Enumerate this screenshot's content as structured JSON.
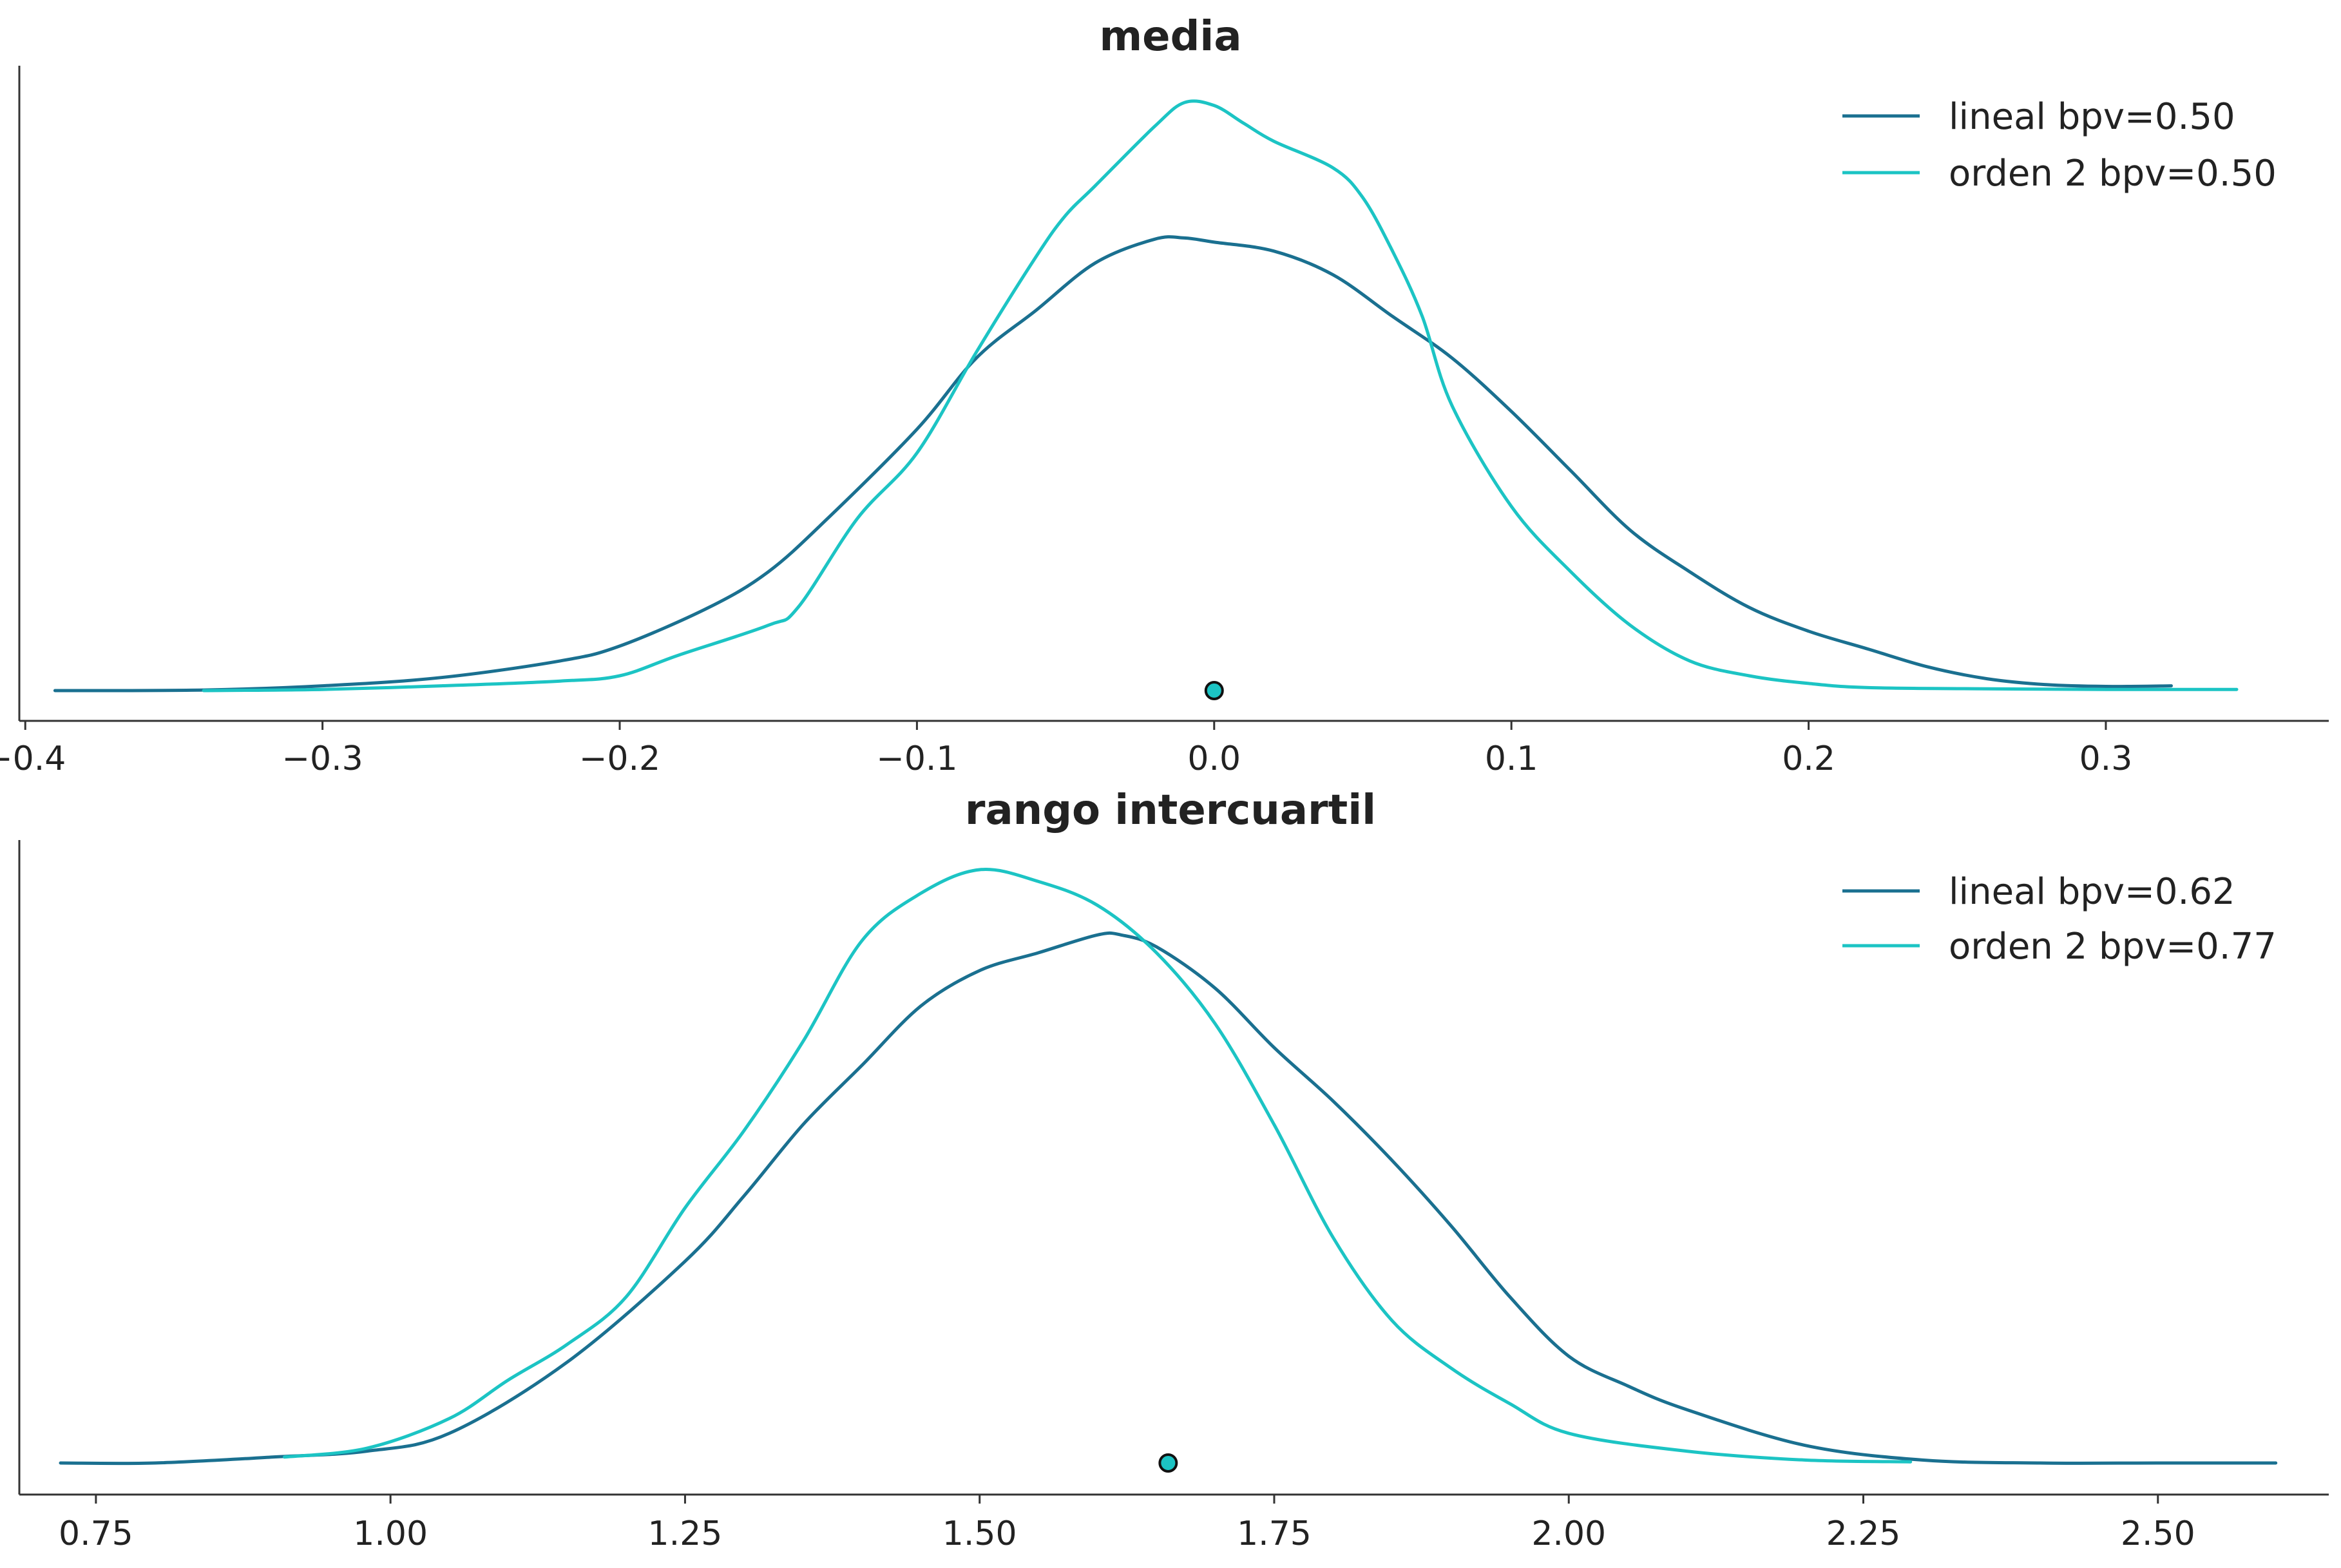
{
  "colors": {
    "lineal": "#1a7090",
    "orden2": "#1cc4c4",
    "axis": "#333333",
    "text": "#222222"
  },
  "chart_data": [
    {
      "type": "line",
      "title": "media",
      "xlim": [
        -0.402,
        0.375
      ],
      "ylim": [
        0,
        1
      ],
      "xticks": [
        -0.4,
        -0.3,
        -0.2,
        -0.1,
        0.0,
        0.1,
        0.2,
        0.3
      ],
      "xtick_labels": [
        "−0.4",
        "−0.3",
        "−0.2",
        "−0.1",
        "0.0",
        "0.1",
        "0.2",
        "0.3"
      ],
      "legend_position": "top-right",
      "marker": {
        "x": 0.0,
        "y": 0.0
      },
      "series": [
        {
          "name": "lineal bpv=0.50",
          "color": "#1a7090",
          "x": [
            -0.39,
            -0.34,
            -0.3,
            -0.26,
            -0.22,
            -0.2,
            -0.17,
            -0.15,
            -0.13,
            -0.1,
            -0.08,
            -0.06,
            -0.04,
            -0.02,
            -0.01,
            0.0,
            0.02,
            0.04,
            0.06,
            0.08,
            0.1,
            0.12,
            0.14,
            0.16,
            0.18,
            0.2,
            0.22,
            0.24,
            0.26,
            0.28,
            0.3,
            0.322
          ],
          "y": [
            0.0,
            0.001,
            0.008,
            0.022,
            0.05,
            0.075,
            0.14,
            0.2,
            0.29,
            0.44,
            0.56,
            0.64,
            0.72,
            0.76,
            0.762,
            0.755,
            0.74,
            0.7,
            0.63,
            0.56,
            0.47,
            0.37,
            0.27,
            0.2,
            0.14,
            0.1,
            0.07,
            0.04,
            0.02,
            0.01,
            0.007,
            0.008
          ]
        },
        {
          "name": "orden 2 bpv=0.50",
          "color": "#1cc4c4",
          "x": [
            -0.34,
            -0.3,
            -0.26,
            -0.22,
            -0.2,
            -0.18,
            -0.15,
            -0.14,
            -0.12,
            -0.1,
            -0.08,
            -0.06,
            -0.05,
            -0.04,
            -0.02,
            -0.01,
            0.0,
            0.01,
            0.02,
            0.04,
            0.05,
            0.06,
            0.07,
            0.08,
            0.1,
            0.12,
            0.14,
            0.16,
            0.18,
            0.2,
            0.22,
            0.26,
            0.3,
            0.344
          ],
          "y": [
            0.0,
            0.002,
            0.008,
            0.016,
            0.025,
            0.06,
            0.11,
            0.14,
            0.29,
            0.4,
            0.57,
            0.73,
            0.8,
            0.85,
            0.95,
            0.99,
            0.985,
            0.955,
            0.925,
            0.88,
            0.83,
            0.74,
            0.63,
            0.48,
            0.31,
            0.2,
            0.11,
            0.05,
            0.025,
            0.012,
            0.005,
            0.003,
            0.002,
            0.002
          ]
        }
      ]
    },
    {
      "type": "line",
      "title": "rango intercuartil",
      "xlim": [
        0.685,
        2.645
      ],
      "ylim": [
        0,
        1
      ],
      "xticks": [
        0.75,
        1.0,
        1.25,
        1.5,
        1.75,
        2.0,
        2.25,
        2.5
      ],
      "xtick_labels": [
        "0.75",
        "1.00",
        "1.25",
        "1.50",
        "1.75",
        "2.00",
        "2.25",
        "2.50"
      ],
      "legend_position": "top-right",
      "marker": {
        "x": 1.66,
        "y": 0.0
      },
      "series": [
        {
          "name": "lineal bpv=0.62",
          "color": "#1a7090",
          "x": [
            0.72,
            0.8,
            0.9,
            0.98,
            1.05,
            1.15,
            1.25,
            1.3,
            1.35,
            1.4,
            1.45,
            1.5,
            1.55,
            1.6,
            1.62,
            1.65,
            1.7,
            1.75,
            1.8,
            1.85,
            1.9,
            1.95,
            2.0,
            2.05,
            2.1,
            2.2,
            2.3,
            2.4,
            2.5,
            2.6
          ],
          "y": [
            0.0,
            0.0,
            0.01,
            0.02,
            0.05,
            0.17,
            0.34,
            0.45,
            0.57,
            0.67,
            0.77,
            0.83,
            0.86,
            0.89,
            0.89,
            0.87,
            0.8,
            0.7,
            0.61,
            0.51,
            0.4,
            0.28,
            0.18,
            0.13,
            0.09,
            0.03,
            0.005,
            0.0,
            0.0,
            0.0
          ]
        },
        {
          "name": "orden 2 bpv=0.77",
          "color": "#1cc4c4",
          "x": [
            0.91,
            0.98,
            1.05,
            1.1,
            1.15,
            1.2,
            1.25,
            1.3,
            1.35,
            1.4,
            1.45,
            1.5,
            1.55,
            1.6,
            1.65,
            1.7,
            1.75,
            1.8,
            1.85,
            1.9,
            1.95,
            2.0,
            2.1,
            2.2,
            2.29
          ],
          "y": [
            0.01,
            0.025,
            0.075,
            0.14,
            0.2,
            0.28,
            0.43,
            0.56,
            0.71,
            0.88,
            0.96,
            1.0,
            0.98,
            0.94,
            0.86,
            0.74,
            0.57,
            0.38,
            0.24,
            0.16,
            0.1,
            0.05,
            0.02,
            0.005,
            0.002
          ]
        }
      ]
    }
  ]
}
